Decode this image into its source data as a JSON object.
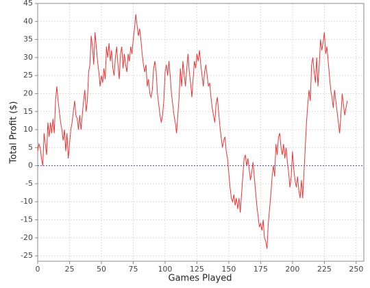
{
  "chart_data": {
    "type": "line",
    "xlabel": "Games Played",
    "ylabel": "Total Profit ($)",
    "xlim": [
      0,
      256
    ],
    "ylim": [
      -26.5,
      45
    ],
    "xticks": [
      0,
      25,
      50,
      75,
      100,
      125,
      150,
      175,
      200,
      225,
      250
    ],
    "yticks": [
      -25,
      -20,
      -15,
      -10,
      -5,
      0,
      5,
      10,
      15,
      20,
      25,
      30,
      35,
      40,
      45
    ],
    "grid": true,
    "hline": {
      "value": 0,
      "color": "#4040ff"
    },
    "x": [
      0,
      1,
      2,
      3,
      4,
      5,
      6,
      7,
      8,
      9,
      10,
      11,
      12,
      13,
      14,
      15,
      16,
      17,
      18,
      19,
      20,
      21,
      22,
      23,
      24,
      25,
      26,
      27,
      28,
      29,
      30,
      31,
      32,
      33,
      34,
      35,
      36,
      37,
      38,
      39,
      40,
      41,
      42,
      43,
      44,
      45,
      46,
      47,
      48,
      49,
      50,
      51,
      52,
      53,
      54,
      55,
      56,
      57,
      58,
      59,
      60,
      61,
      62,
      63,
      64,
      65,
      66,
      67,
      68,
      69,
      70,
      71,
      72,
      73,
      74,
      75,
      76,
      77,
      78,
      79,
      80,
      81,
      82,
      83,
      84,
      85,
      86,
      87,
      88,
      89,
      90,
      91,
      92,
      93,
      94,
      95,
      96,
      97,
      98,
      99,
      100,
      101,
      102,
      103,
      104,
      105,
      106,
      107,
      108,
      109,
      110,
      111,
      112,
      113,
      114,
      115,
      116,
      117,
      118,
      119,
      120,
      121,
      122,
      123,
      124,
      125,
      126,
      127,
      128,
      129,
      130,
      131,
      132,
      133,
      134,
      135,
      136,
      137,
      138,
      139,
      140,
      141,
      142,
      143,
      144,
      145,
      146,
      147,
      148,
      149,
      150,
      151,
      152,
      153,
      154,
      155,
      156,
      157,
      158,
      159,
      160,
      161,
      162,
      163,
      164,
      165,
      166,
      167,
      168,
      169,
      170,
      171,
      172,
      173,
      174,
      175,
      176,
      177,
      178,
      179,
      180,
      181,
      182,
      183,
      184,
      185,
      186,
      187,
      188,
      189,
      190,
      191,
      192,
      193,
      194,
      195,
      196,
      197,
      198,
      199,
      200,
      201,
      202,
      203,
      204,
      205,
      206,
      207,
      208,
      209,
      210,
      211,
      212,
      213,
      214,
      215,
      216,
      217,
      218,
      219,
      220,
      221,
      222,
      223,
      224,
      225,
      226,
      227,
      228,
      229,
      230,
      231,
      232,
      233,
      234,
      235,
      236,
      237,
      238,
      239,
      240,
      241,
      242,
      243
    ],
    "series": [
      {
        "name": "Total Profit",
        "color": "#ee3333",
        "values": [
          4,
          6,
          5,
          2,
          0,
          9,
          6,
          3,
          12,
          8,
          12,
          9,
          13,
          9,
          18,
          22,
          18,
          15,
          12,
          10,
          7,
          10,
          4,
          9,
          2,
          6,
          10,
          12,
          15,
          18,
          14,
          13,
          10,
          14,
          10,
          14,
          18,
          21,
          15,
          18,
          26,
          28,
          36,
          33,
          28,
          37,
          33,
          29,
          26,
          22,
          25,
          23,
          27,
          24,
          33,
          30,
          34,
          29,
          32,
          27,
          25,
          30,
          33,
          28,
          24,
          31,
          33,
          27,
          31,
          28,
          26,
          31,
          29,
          33,
          31,
          35,
          38,
          42,
          39,
          36,
          38,
          35,
          31,
          28,
          26,
          28,
          22,
          24,
          20,
          19,
          21,
          27,
          29,
          26,
          20,
          17,
          14,
          12,
          14,
          18,
          26,
          28,
          25,
          29,
          25,
          20,
          17,
          14,
          12,
          9,
          14,
          19,
          27,
          22,
          29,
          25,
          22,
          27,
          31,
          26,
          23,
          19,
          24,
          29,
          27,
          31,
          29,
          32,
          28,
          25,
          22,
          26,
          28,
          25,
          22,
          23,
          19,
          16,
          14,
          12,
          17,
          19,
          15,
          11,
          8,
          5,
          7,
          8,
          4,
          2,
          -2,
          -6,
          -9,
          -10,
          -8,
          -11,
          -9,
          -12,
          -9,
          -13,
          -8,
          -3,
          2,
          3,
          0,
          2,
          -1,
          -4,
          -2,
          1,
          -3,
          -7,
          -11,
          -14,
          -17,
          -16,
          -18,
          -15,
          -20,
          -21,
          -23,
          -16,
          -12,
          -8,
          -3,
          0,
          -3,
          6,
          3,
          8,
          9,
          5,
          3,
          6,
          2,
          5,
          1,
          -2,
          -6,
          -3,
          4,
          -1,
          -4,
          -6,
          -3,
          -7,
          -9,
          -4,
          -9,
          -2,
          5,
          12,
          17,
          21,
          18,
          28,
          30,
          26,
          23,
          30,
          22,
          28,
          35,
          32,
          34,
          37,
          31,
          33,
          29,
          25,
          21,
          19,
          16,
          21,
          18,
          15,
          12,
          9,
          14,
          20,
          17,
          14,
          16,
          18
        ]
      }
    ]
  }
}
